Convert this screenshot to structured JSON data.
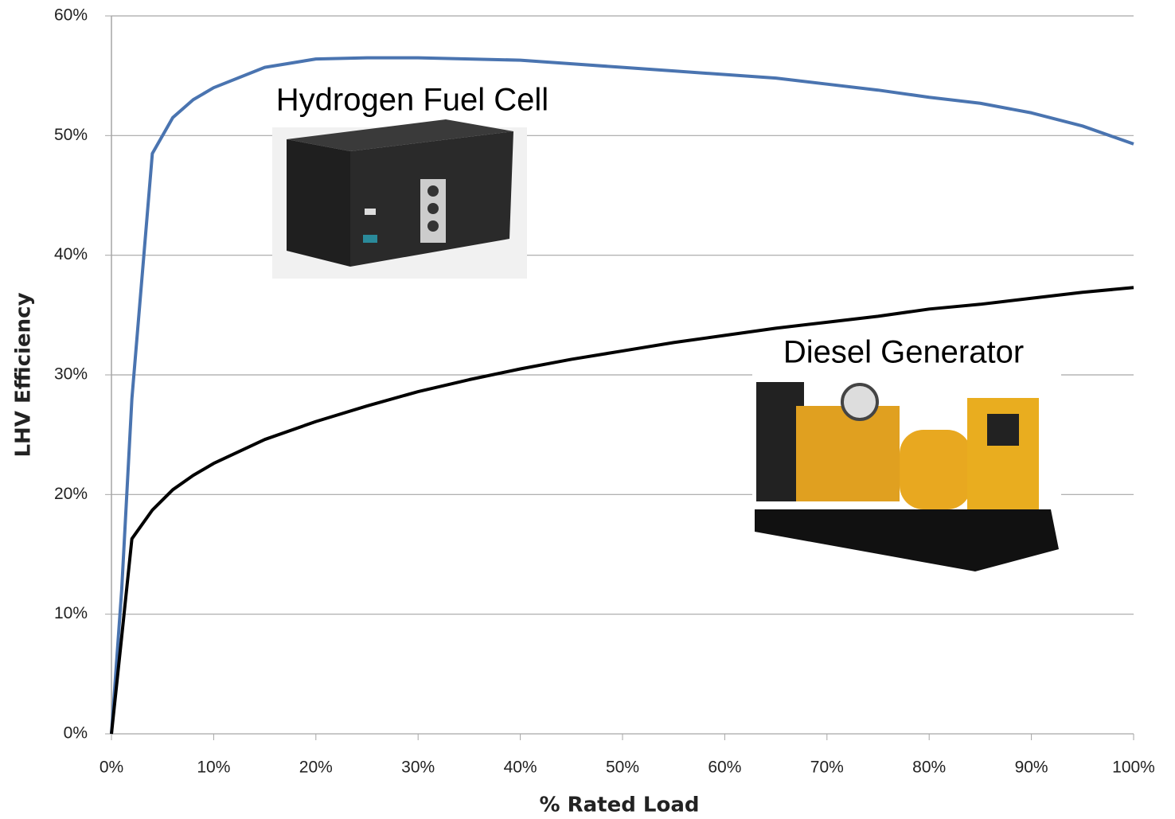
{
  "chart_data": {
    "type": "line",
    "x_label": "% Rated Load",
    "y_label": "LHV Efficiency",
    "x": [
      0,
      1,
      2,
      4,
      6,
      8,
      10,
      15,
      20,
      25,
      30,
      35,
      40,
      45,
      50,
      55,
      60,
      65,
      70,
      75,
      80,
      85,
      90,
      95,
      100
    ],
    "series": [
      {
        "name": "Hydrogen Fuel Cell",
        "color": "#4a74b0",
        "values": [
          0,
          12,
          28,
          48.5,
          51.5,
          53,
          54,
          55.7,
          56.4,
          56.5,
          56.5,
          56.4,
          56.3,
          56.0,
          55.7,
          55.4,
          55.1,
          54.8,
          54.3,
          53.8,
          53.2,
          52.7,
          51.9,
          50.8,
          49.3
        ]
      },
      {
        "name": "Diesel Generator",
        "color": "#000000",
        "values": [
          0,
          8.1,
          16.3,
          18.7,
          20.4,
          21.6,
          22.6,
          24.6,
          26.1,
          27.4,
          28.6,
          29.6,
          30.5,
          31.3,
          32.0,
          32.7,
          33.3,
          33.9,
          34.4,
          34.9,
          35.5,
          35.9,
          36.4,
          36.9,
          37.3
        ]
      }
    ],
    "xlim": [
      0,
      100
    ],
    "xticks": [
      {
        "value": 0,
        "label": "0%"
      },
      {
        "value": 10,
        "label": "10%"
      },
      {
        "value": 20,
        "label": "20%"
      },
      {
        "value": 30,
        "label": "30%"
      },
      {
        "value": 40,
        "label": "40%"
      },
      {
        "value": 50,
        "label": "50%"
      },
      {
        "value": 60,
        "label": "60%"
      },
      {
        "value": 70,
        "label": "70%"
      },
      {
        "value": 80,
        "label": "80%"
      },
      {
        "value": 90,
        "label": "90%"
      },
      {
        "value": 100,
        "label": "100%"
      }
    ],
    "ylim": [
      0,
      60
    ],
    "yticks": [
      {
        "value": 0,
        "label": "0%"
      },
      {
        "value": 10,
        "label": "10%"
      },
      {
        "value": 20,
        "label": "20%"
      },
      {
        "value": 30,
        "label": "30%"
      },
      {
        "value": 40,
        "label": "40%"
      },
      {
        "value": 50,
        "label": "50%"
      },
      {
        "value": 60,
        "label": "60%"
      }
    ],
    "grid": true
  }
}
